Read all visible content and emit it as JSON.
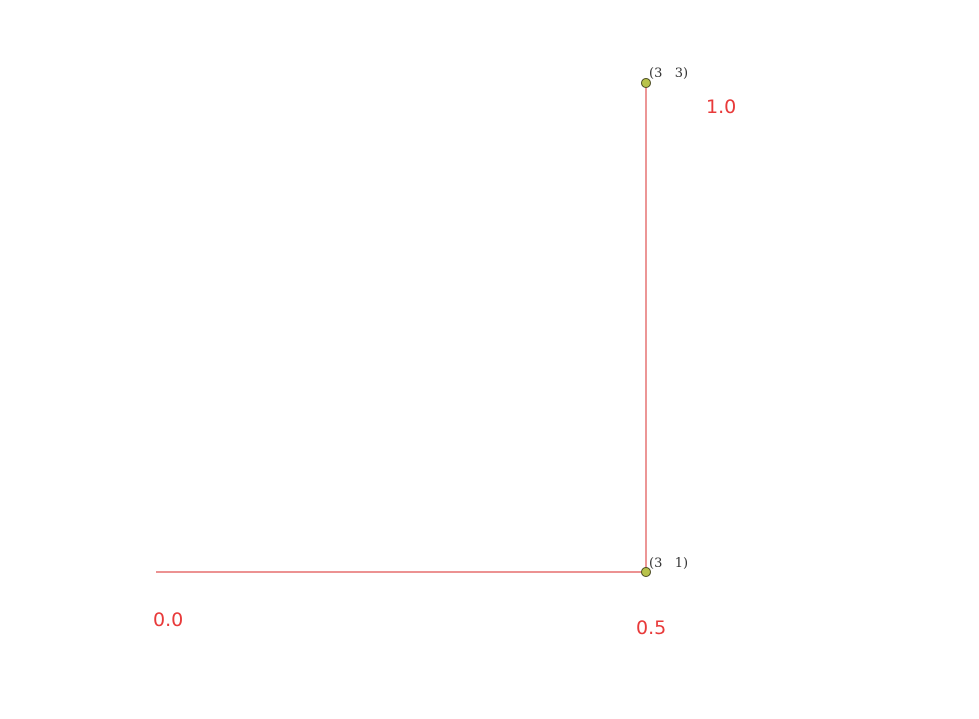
{
  "colors": {
    "path": "#e05050",
    "param_label": "#e83a3a",
    "point_fill": "#b8c24a",
    "point_stroke": "#4a4a20",
    "background": "#ffffff"
  },
  "diagram": {
    "points": [
      {
        "id": "p-top",
        "label": "(3   3)"
      },
      {
        "id": "p-corner",
        "label": "(3   1)"
      }
    ],
    "parameter_labels": [
      {
        "id": "t-0",
        "text": "0.0"
      },
      {
        "id": "t-05",
        "text": "0.5"
      },
      {
        "id": "t-1",
        "text": "1.0"
      }
    ]
  }
}
